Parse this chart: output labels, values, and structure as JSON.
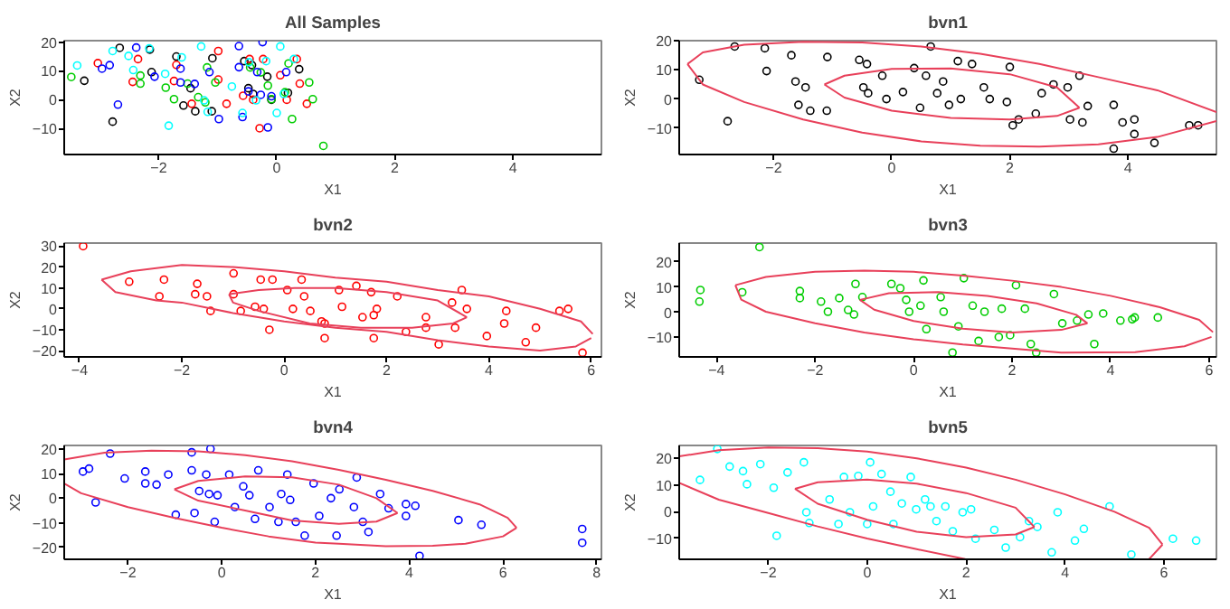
{
  "chart_data": [
    {
      "type": "scatter",
      "title": "All Samples",
      "xlabel": "X1",
      "ylabel": "X2",
      "xlim": [
        -3.6,
        5.5
      ],
      "ylim": [
        -19,
        20.5
      ],
      "xticks": [
        -2,
        0,
        2,
        4
      ],
      "yticks": [
        -10,
        0,
        10,
        20
      ],
      "grid": false,
      "marker": "circle",
      "series": [
        {
          "color": "#000000",
          "x": [
            -2.66,
            -2.15,
            -2.12,
            -1.7,
            -3.26,
            -2.78,
            -1.63,
            -1.46,
            -1.58,
            -1.38,
            -1.09,
            -1.1,
            -0.55,
            -0.42,
            -0.48,
            -0.4,
            -0.16,
            -0.09,
            0.19,
            0.38
          ],
          "values": [
            18,
            17.4,
            9.6,
            15,
            6.6,
            -7.6,
            null,
            4,
            -2,
            -4,
            14.4,
            -4,
            13.4,
            12,
            4,
            2,
            8,
            0,
            2.4,
            10.6
          ]
        },
        {
          "color": "#ff0000",
          "x": [
            -3.03,
            -2.44,
            -2.35,
            -1.7,
            -1.74,
            -1.51,
            -1.44,
            -0.99,
            -0.99,
            -0.85,
            -0.57,
            -0.46,
            -0.4,
            -0.29,
            -0.23,
            0.06,
            0.17,
            0.34,
            0.39,
            0.51
          ],
          "values": [
            12.7,
            6.2,
            14.1,
            12.1,
            6.5,
            null,
            -1.4,
            16.9,
            7,
            -1.4,
            1.4,
            14.1,
            0,
            -9.9,
            14.1,
            8.5,
            0,
            14.1,
            5.6,
            -1.4
          ]
        },
        {
          "color": "#00cd00",
          "x": [
            -3.48,
            -2.31,
            -2.31,
            -1.88,
            -1.74,
            -1.51,
            -1.33,
            -1.18,
            -1.04,
            -1.21,
            -0.45,
            -0.27,
            -0.15,
            -0.09,
            0.2,
            0.14,
            0.26,
            0.55,
            0.61,
            0.79
          ],
          "values": [
            7.9,
            8.4,
            5.6,
            4.2,
            0.2,
            5.6,
            0.9,
            11.2,
            6,
            -0.9,
            11.2,
            9.5,
            4.9,
            0.2,
            12.6,
            2.6,
            -6.7,
            6,
            0.2,
            -16
          ]
        },
        {
          "color": "#0000ff",
          "x": [
            -2.96,
            -2.83,
            -2.69,
            -2.38,
            -2.07,
            -1.63,
            -1.63,
            -1.39,
            -1.14,
            -0.98,
            -0.64,
            -0.64,
            -0.58,
            -0.48,
            -0.24,
            -0.33,
            -0.27,
            -0.15,
            -0.09,
            0.16
          ],
          "values": [
            10.8,
            12,
            -1.7,
            18.1,
            8,
            10.8,
            6,
            5.5,
            9.6,
            -6.7,
            11.3,
            18.6,
            -6,
            2.9,
            20,
            9.6,
            1.7,
            -9.6,
            1.2,
            9.6
          ]
        },
        {
          "color": "#00ffff",
          "x": [
            -3.38,
            -2.78,
            -2.51,
            -2.43,
            -2.16,
            -1.89,
            -1.83,
            -1.61,
            -1.28,
            -1.23,
            -1.17,
            -0.76,
            -0.58,
            -0.47,
            -0.35,
            -0.18,
            0,
            0.06,
            0.12,
            0.29
          ],
          "values": [
            11.9,
            16.9,
            15.2,
            10.3,
            17.8,
            9,
            -9,
            14.7,
            18.5,
            -0.2,
            -4.2,
            4.6,
            -4.6,
            13,
            -0.2,
            13.4,
            -4.6,
            18.5,
            2,
            14.1
          ]
        }
      ]
    },
    {
      "type": "scatter",
      "title": "bvn1",
      "xlabel": "X1",
      "ylabel": "X2",
      "xlim": [
        -3.6,
        5.5
      ],
      "ylim": [
        -19,
        20
      ],
      "xticks": [
        -2,
        0,
        2,
        4
      ],
      "yticks": [
        -10,
        0,
        10,
        20
      ],
      "grid": false,
      "series": [
        {
          "color": "#000000",
          "marker": "circle",
          "x": [
            -2.66,
            -2.15,
            -2.12,
            -1.7,
            -3.26,
            -2.78,
            -1.63,
            -1.46,
            -1.58,
            -1.38,
            -1.09,
            -1.1,
            -0.55,
            -0.42,
            -0.48,
            -0.4,
            -0.16,
            -0.09,
            0.19,
            0.38,
            0.66,
            0.58,
            0.77,
            0.87,
            0.97,
            1.12,
            1.36,
            1.56,
            1.66,
            2,
            1.95,
            2.05,
            2.15,
            2.54,
            2.74,
            2.98,
            3.02,
            3.18,
            3.23,
            3.76,
            3.91,
            4.11,
            4.11,
            4.45,
            5.04,
            5.19,
            3.76,
            3.32,
            2.44,
            1.17,
            0.48
          ],
          "values": [
            18,
            17.4,
            9.6,
            15,
            6.6,
            -7.6,
            6,
            4,
            -2,
            -4,
            14.4,
            -4,
            13.4,
            12,
            4,
            2,
            8,
            0,
            2.4,
            10.6,
            18,
            8,
            2,
            6,
            -2,
            13,
            12,
            4,
            0,
            11,
            -1,
            -9,
            -7,
            2,
            5,
            4,
            -7,
            8,
            -8,
            -2,
            -8,
            -7,
            -12,
            -15,
            -9,
            -9,
            -17,
            -2.4,
            -5,
            0,
            -3
          ]
        },
        {
          "type": "line",
          "marker": "none",
          "color": "#e8405a",
          "x": [
            -3.46,
            -3.2,
            -2.5,
            -1.5,
            -0.5,
            0.5,
            1.5,
            2.5,
            3.5,
            4.5,
            5.5
          ],
          "values": [
            12,
            16,
            18.6,
            19.6,
            19.4,
            18,
            15.5,
            12,
            7.5,
            3,
            -4.5
          ]
        },
        {
          "type": "line",
          "marker": "none",
          "color": "#e8405a",
          "x": [
            -3.46,
            -3.2,
            -2.5,
            -1.5,
            -0.5,
            0.5,
            1.5,
            2.5,
            3.5,
            4.5,
            5.5
          ],
          "values": [
            12,
            5,
            -1,
            -7,
            -11.5,
            -14.5,
            -16,
            -16.3,
            -15.5,
            -13,
            -7.5
          ]
        },
        {
          "type": "line",
          "marker": "none",
          "color": "#e8405a",
          "x": [
            -1.14,
            -0.8,
            0,
            1,
            2,
            2.8,
            3.18
          ],
          "values": [
            5,
            8,
            10.3,
            10.5,
            8.5,
            4,
            -3
          ]
        },
        {
          "type": "line",
          "marker": "none",
          "color": "#e8405a",
          "x": [
            -1.14,
            -0.8,
            0,
            1,
            2,
            2.8,
            3.18
          ],
          "values": [
            5,
            0.5,
            -4,
            -6.5,
            -7,
            -5.8,
            -3
          ]
        }
      ]
    },
    {
      "type": "scatter",
      "title": "bvn2",
      "xlabel": "X1",
      "ylabel": "X2",
      "xlim": [
        -4.3,
        6.2
      ],
      "ylim": [
        -23,
        31.5
      ],
      "xticks": [
        -4,
        -2,
        0,
        2,
        4,
        6
      ],
      "yticks": [
        -20,
        -10,
        0,
        10,
        20,
        30
      ],
      "grid": false,
      "series": [
        {
          "color": "#ff0000",
          "marker": "circle",
          "x": [
            -3.93,
            -3.03,
            -2.44,
            -2.35,
            -1.7,
            -1.74,
            -1.51,
            -1.44,
            -0.99,
            -0.99,
            -0.85,
            -0.57,
            -0.46,
            -0.4,
            -0.29,
            -0.23,
            0.06,
            0.17,
            0.34,
            0.39,
            0.51,
            0.73,
            0.79,
            0.79,
            1.07,
            1.13,
            1.41,
            1.53,
            1.75,
            1.81,
            1.75,
            2.21,
            2.38,
            2.77,
            2.77,
            3.02,
            3.28,
            3.34,
            3.57,
            3.96,
            4.34,
            4.3,
            4.72,
            4.92,
            5.38,
            5.55,
            5.83,
            3.47,
            1.7
          ],
          "values": [
            30,
            13,
            6,
            14,
            12,
            7,
            6,
            -1,
            17,
            7,
            -1,
            1,
            14,
            0,
            -10,
            14,
            9,
            0,
            14,
            6,
            -1,
            -6,
            -7,
            -14,
            9,
            1,
            11,
            -4,
            -3,
            0,
            -14,
            6,
            -11,
            -4,
            -9,
            -17,
            3,
            -9,
            0,
            -13,
            -1,
            -7,
            -16,
            -9,
            -1,
            0,
            -21,
            9,
            8
          ]
        },
        {
          "type": "line",
          "marker": "none",
          "color": "#e8405a",
          "x": [
            -3.57,
            -3,
            -2,
            -1,
            0,
            1,
            2,
            3,
            4,
            5,
            5.8,
            6.03
          ],
          "values": [
            14,
            18,
            21,
            20,
            18,
            15,
            13,
            9,
            6,
            0,
            -6,
            -12
          ]
        },
        {
          "type": "line",
          "marker": "none",
          "color": "#e8405a",
          "x": [
            -3.57,
            -3.3,
            -2.5,
            -2,
            -1,
            0,
            1,
            2,
            3,
            4,
            5,
            5.7,
            6
          ],
          "values": [
            14,
            8,
            4,
            3,
            -2,
            -6,
            -9,
            -11,
            -15,
            -18,
            -20,
            -18,
            -14
          ]
        },
        {
          "type": "line",
          "marker": "none",
          "color": "#e8405a",
          "x": [
            -1.08,
            -0.5,
            0.2,
            1,
            2,
            3,
            3.57
          ],
          "values": [
            7,
            9,
            10,
            10,
            8,
            4,
            -4
          ]
        },
        {
          "type": "line",
          "marker": "none",
          "color": "#e8405a",
          "x": [
            -1.08,
            -1,
            -0.5,
            0.5,
            1.5,
            2.5,
            3.3,
            3.57
          ],
          "values": [
            7,
            3,
            -1,
            -7,
            -9,
            -9,
            -7,
            -4
          ]
        }
      ]
    },
    {
      "type": "scatter",
      "title": "bvn3",
      "xlabel": "X1",
      "ylabel": "X2",
      "xlim": [
        -4.76,
        6.15
      ],
      "ylim": [
        -17.7,
        27.4
      ],
      "xticks": [
        -4,
        -2,
        0,
        2,
        4,
        6
      ],
      "yticks": [
        -10,
        0,
        10,
        20
      ],
      "grid": false,
      "series": [
        {
          "color": "#00cd00",
          "marker": "circle",
          "x": [
            -4.33,
            -4.35,
            -3.13,
            -3.48,
            -2.31,
            -2.31,
            -1.88,
            -1.74,
            -1.51,
            -1.33,
            -1.18,
            -1.04,
            -1.21,
            -0.45,
            -0.27,
            -0.15,
            -0.09,
            0.2,
            0.14,
            0.26,
            0.55,
            0.61,
            0.79,
            0.91,
            1.02,
            1.2,
            1.32,
            1.44,
            1.73,
            1.79,
            1.96,
            2.08,
            2.26,
            2.38,
            2.49,
            2.85,
            3.02,
            3.32,
            3.55,
            3.67,
            3.85,
            4.2,
            4.49,
            4.96,
            4.44
          ],
          "values": [
            8.8,
            4.2,
            25.8,
            7.9,
            8.4,
            5.6,
            4.2,
            0.2,
            5.6,
            0.9,
            11.2,
            6,
            -0.9,
            11.2,
            9.5,
            4.9,
            0.2,
            12.6,
            2.6,
            -6.7,
            6,
            0.2,
            -16,
            -5.6,
            13.5,
            2.6,
            -11.4,
            0.2,
            -9.8,
            1.4,
            -9.1,
            10.7,
            1.4,
            -12.6,
            -16,
            7.2,
            -4.4,
            -3.3,
            -0.9,
            -12.6,
            -0.5,
            -3.3,
            -2.1,
            -2.1,
            -2.8
          ]
        },
        {
          "type": "line",
          "marker": "none",
          "color": "#e8405a",
          "x": [
            -3.62,
            -3,
            -2,
            -1,
            0,
            1,
            2,
            3,
            4,
            5,
            5.8,
            6.08
          ],
          "values": [
            10.7,
            14,
            16,
            16.5,
            16,
            14.5,
            12.5,
            10,
            6.5,
            2,
            -3,
            -7.9
          ]
        },
        {
          "type": "line",
          "marker": "none",
          "color": "#e8405a",
          "x": [
            -3.62,
            -3.5,
            -3,
            -2,
            -1,
            0,
            1,
            2,
            3,
            4.5,
            5.5,
            6.05
          ],
          "values": [
            10.7,
            5,
            0.2,
            -4.4,
            -8,
            -10.7,
            -12.8,
            -14.4,
            -16,
            -15.8,
            -13.5,
            -9.8
          ]
        },
        {
          "type": "line",
          "marker": "none",
          "color": "#e8405a",
          "x": [
            -1.09,
            -0.5,
            0.5,
            1.5,
            2.5,
            3.3,
            3.53
          ],
          "values": [
            4.9,
            7.5,
            8,
            6.5,
            3.5,
            -1,
            -4.4
          ]
        },
        {
          "type": "line",
          "marker": "none",
          "color": "#e8405a",
          "x": [
            -1.09,
            -0.8,
            0,
            1,
            2,
            3,
            3.53
          ],
          "values": [
            4.9,
            1,
            -3.5,
            -6.5,
            -8,
            -7,
            -4.4
          ]
        }
      ]
    },
    {
      "type": "scatter",
      "title": "bvn4",
      "xlabel": "X1",
      "ylabel": "X2",
      "xlim": [
        -3.36,
        8.1
      ],
      "ylim": [
        -24.8,
        21.4
      ],
      "xticks": [
        -2,
        0,
        2,
        4,
        6,
        8
      ],
      "yticks": [
        -20,
        -10,
        0,
        10,
        20
      ],
      "grid": false,
      "series": [
        {
          "color": "#0000ff",
          "marker": "circle",
          "x": [
            -2.96,
            -2.83,
            -2.69,
            -2.38,
            -2.07,
            -1.63,
            -1.63,
            -1.39,
            -1.14,
            -0.98,
            -0.64,
            -0.64,
            -0.58,
            -0.48,
            -0.24,
            -0.33,
            -0.27,
            -0.15,
            -0.09,
            0.16,
            0.28,
            0.46,
            0.59,
            0.71,
            0.78,
            1.02,
            1.21,
            1.27,
            1.4,
            1.46,
            1.58,
            1.77,
            1.96,
            2.08,
            2.33,
            2.45,
            2.51,
            2.82,
            2.88,
            3.01,
            3.13,
            3.38,
            3.56,
            3.93,
            3.93,
            4.13,
            4.22,
            5.05,
            5.54,
            7.69,
            7.69
          ],
          "values": [
            10.8,
            12,
            -1.7,
            18.1,
            8,
            10.8,
            6,
            5.5,
            9.6,
            -6.7,
            11.3,
            18.6,
            -6,
            2.9,
            20,
            9.6,
            1.7,
            -9.6,
            1.2,
            9.6,
            -3.6,
            4.8,
            1.2,
            -8.4,
            11.3,
            -3.6,
            -9.6,
            1.7,
            9.6,
            -0.7,
            -9.6,
            -15.2,
            6,
            -7.2,
            0,
            -15.2,
            3.6,
            -3.6,
            8.4,
            -9.6,
            -13.7,
            1.7,
            -4.1,
            -2.4,
            -7.2,
            -3.1,
            -23.4,
            -8.9,
            -10.8,
            -12.5,
            -18.1
          ]
        },
        {
          "type": "line",
          "marker": "none",
          "color": "#e8405a",
          "x": [
            -3.36,
            -2.5,
            -1.5,
            -0.5,
            0.5,
            1.5,
            2.5,
            3.5,
            4.5,
            5.5,
            6.1,
            6.29
          ],
          "values": [
            15.7,
            18.5,
            19.3,
            19,
            17.5,
            15,
            11.5,
            7.5,
            3,
            -2.5,
            -8,
            -12
          ]
        },
        {
          "type": "line",
          "marker": "none",
          "color": "#e8405a",
          "x": [
            -3.36,
            -3,
            -2,
            -1,
            0,
            1,
            2,
            2.5,
            3.5,
            4.5,
            5.2,
            6,
            6.29
          ],
          "values": [
            6,
            2,
            -3.6,
            -8,
            -12,
            -15.5,
            -18,
            -18.5,
            -19.5,
            -19.3,
            -18.5,
            -15.5,
            -12
          ]
        },
        {
          "type": "line",
          "marker": "none",
          "color": "#e8405a",
          "x": [
            -1.01,
            -0.5,
            0.5,
            1.5,
            2.5,
            3.3,
            3.75
          ],
          "values": [
            3.6,
            7,
            8.8,
            8.5,
            5.5,
            0,
            -6
          ]
        },
        {
          "type": "line",
          "marker": "none",
          "color": "#e8405a",
          "x": [
            -1.01,
            -0.5,
            0.5,
            1.5,
            2.5,
            3.3,
            3.75
          ],
          "values": [
            3.6,
            -1,
            -5,
            -9,
            -10.4,
            -9.5,
            -6
          ]
        }
      ]
    },
    {
      "type": "scatter",
      "title": "bvn5",
      "xlabel": "X1",
      "ylabel": "X2",
      "xlim": [
        -3.8,
        7.06
      ],
      "ylim": [
        -17.8,
        24.8
      ],
      "xticks": [
        -2,
        0,
        2,
        4,
        6
      ],
      "yticks": [
        -10,
        0,
        10,
        20
      ],
      "grid": false,
      "series": [
        {
          "color": "#00ffff",
          "marker": "circle",
          "x": [
            -3.38,
            -3.03,
            -2.78,
            -2.51,
            -2.43,
            -2.16,
            -1.89,
            -1.83,
            -1.61,
            -1.28,
            -1.23,
            -1.17,
            -0.76,
            -0.58,
            -0.47,
            -0.35,
            -0.18,
            0,
            0.06,
            0.12,
            0.29,
            0.47,
            0.53,
            0.7,
            0.88,
            0.99,
            1.17,
            1.28,
            1.4,
            1.58,
            1.73,
            1.93,
            2.1,
            2.19,
            2.57,
            2.8,
            3.09,
            3.27,
            3.44,
            3.73,
            3.85,
            4.2,
            4.38,
            4.9,
            5.34,
            6.18,
            6.65
          ],
          "values": [
            11.9,
            23.5,
            16.9,
            15.2,
            10.3,
            17.8,
            9,
            -9,
            14.7,
            18.5,
            -0.2,
            -4.2,
            4.6,
            -4.6,
            13,
            -0.2,
            13.4,
            -4.6,
            18.5,
            2,
            14.1,
            7.5,
            -4.6,
            3.1,
            13,
            0.9,
            4.6,
            2,
            -3.5,
            2,
            -7.3,
            -0.2,
            0.9,
            -10.1,
            -6.8,
            -13.4,
            -9.5,
            -3.5,
            -5.7,
            -15.2,
            -0.2,
            -10.8,
            -6.4,
            2,
            -16,
            -10.1,
            -10.8
          ]
        },
        {
          "type": "line",
          "marker": "none",
          "color": "#e8405a",
          "x": [
            -3.8,
            -3,
            -2,
            -1,
            0,
            1,
            2,
            3,
            4,
            5,
            5.7,
            5.97
          ],
          "values": [
            20.7,
            23,
            24,
            23.8,
            22.5,
            20,
            16.5,
            12,
            6.5,
            0,
            -6,
            -12.3
          ]
        },
        {
          "type": "line",
          "marker": "none",
          "color": "#e8405a",
          "x": [
            5.7,
            5.97
          ],
          "values": [
            -17.7,
            -12.3
          ]
        },
        {
          "type": "line",
          "marker": "none",
          "color": "#e8405a",
          "x": [
            -3.8,
            -3,
            -2,
            -1,
            0,
            1,
            1.98
          ],
          "values": [
            10.8,
            4.5,
            -0.5,
            -5.5,
            -10,
            -14,
            -17.7
          ]
        },
        {
          "type": "line",
          "marker": "none",
          "color": "#e8405a",
          "x": [
            -1.46,
            -1,
            0,
            1,
            2,
            3,
            3.38
          ],
          "values": [
            8.6,
            11,
            12,
            10.5,
            7,
            1.5,
            -5.7
          ]
        },
        {
          "type": "line",
          "marker": "none",
          "color": "#e8405a",
          "x": [
            -1.46,
            -1,
            0,
            1,
            2,
            3,
            3.38
          ],
          "values": [
            8.6,
            3,
            -3,
            -7.5,
            -9.5,
            -8.5,
            -5.7
          ]
        }
      ]
    }
  ]
}
